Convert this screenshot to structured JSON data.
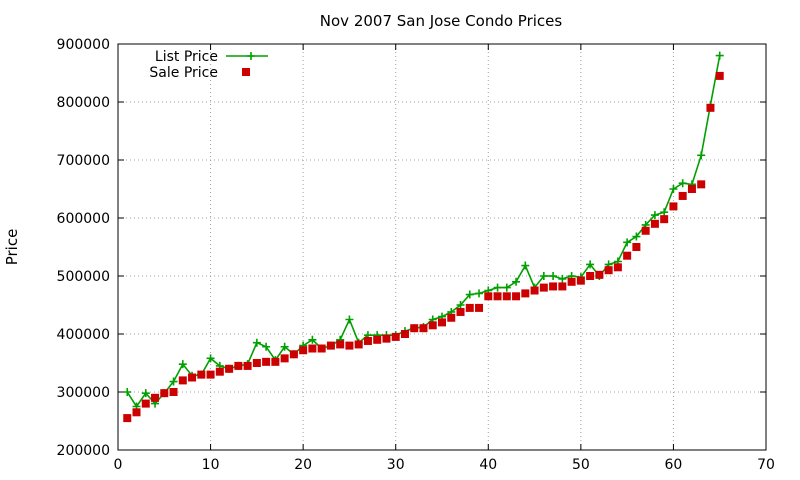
{
  "chart_data": {
    "type": "line",
    "title": "Nov 2007 San Jose Condo Prices",
    "xlabel": "",
    "ylabel": "Price",
    "xlim": [
      0,
      70
    ],
    "ylim": [
      200000,
      900000
    ],
    "xticks": [
      0,
      10,
      20,
      30,
      40,
      50,
      60,
      70
    ],
    "yticks": [
      200000,
      300000,
      400000,
      500000,
      600000,
      700000,
      800000,
      900000
    ],
    "grid": true,
    "legend_position": "top-left",
    "series": [
      {
        "name": "List Price",
        "style": "line-plus",
        "color": "#00a000",
        "x": [
          1,
          2,
          3,
          4,
          5,
          6,
          7,
          8,
          9,
          10,
          11,
          12,
          13,
          14,
          15,
          16,
          17,
          18,
          19,
          20,
          21,
          22,
          23,
          24,
          25,
          26,
          27,
          28,
          29,
          30,
          31,
          32,
          33,
          34,
          35,
          36,
          37,
          38,
          39,
          40,
          41,
          42,
          43,
          44,
          45,
          46,
          47,
          48,
          49,
          50,
          51,
          52,
          53,
          54,
          55,
          56,
          57,
          58,
          59,
          60,
          61,
          62,
          63,
          64,
          65
        ],
        "values": [
          300000,
          275000,
          298000,
          280000,
          298000,
          318000,
          348000,
          328000,
          330000,
          358000,
          345000,
          340000,
          345000,
          348000,
          385000,
          378000,
          355000,
          378000,
          365000,
          380000,
          390000,
          375000,
          380000,
          390000,
          425000,
          385000,
          398000,
          398000,
          398000,
          398000,
          405000,
          410000,
          412000,
          425000,
          430000,
          438000,
          450000,
          468000,
          470000,
          475000,
          480000,
          480000,
          490000,
          518000,
          480000,
          500000,
          500000,
          495000,
          500000,
          498000,
          520000,
          500000,
          520000,
          525000,
          558000,
          568000,
          588000,
          605000,
          610000,
          650000,
          660000,
          658000,
          708000,
          795000,
          880000
        ]
      },
      {
        "name": "Sale Price",
        "style": "points-square",
        "color": "#cc0000",
        "x": [
          1,
          2,
          3,
          4,
          5,
          6,
          7,
          8,
          9,
          10,
          11,
          12,
          13,
          14,
          15,
          16,
          17,
          18,
          19,
          20,
          21,
          22,
          23,
          24,
          25,
          26,
          27,
          28,
          29,
          30,
          31,
          32,
          33,
          34,
          35,
          36,
          37,
          38,
          39,
          40,
          41,
          42,
          43,
          44,
          45,
          46,
          47,
          48,
          49,
          50,
          51,
          52,
          53,
          54,
          55,
          56,
          57,
          58,
          59,
          60,
          61,
          62,
          63,
          64,
          65
        ],
        "values": [
          255000,
          265000,
          280000,
          290000,
          298000,
          300000,
          320000,
          325000,
          330000,
          330000,
          335000,
          340000,
          345000,
          345000,
          350000,
          352000,
          352000,
          358000,
          365000,
          372000,
          375000,
          375000,
          380000,
          382000,
          380000,
          382000,
          388000,
          390000,
          392000,
          395000,
          400000,
          410000,
          410000,
          415000,
          420000,
          428000,
          438000,
          445000,
          445000,
          465000,
          465000,
          465000,
          465000,
          470000,
          475000,
          480000,
          482000,
          482000,
          490000,
          492000,
          500000,
          502000,
          510000,
          515000,
          535000,
          550000,
          578000,
          590000,
          598000,
          620000,
          638000,
          650000,
          658000,
          790000,
          845000
        ]
      }
    ]
  }
}
